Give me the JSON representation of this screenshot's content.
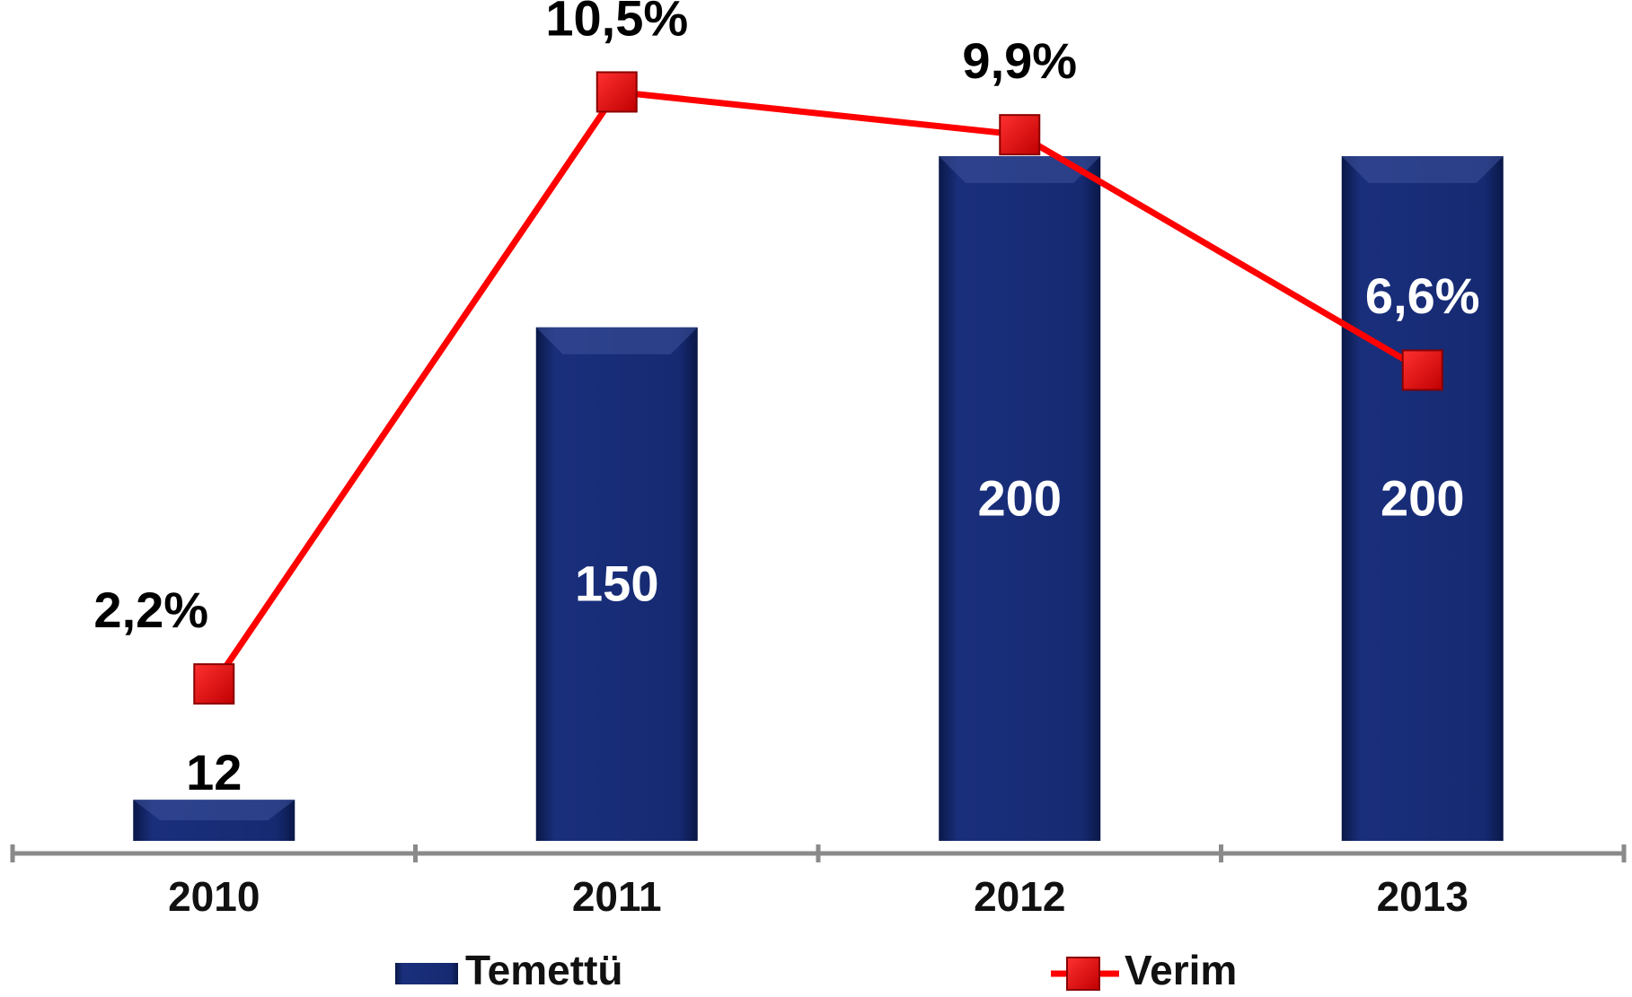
{
  "chart_data": {
    "type": "bar-line",
    "categories": [
      "2010",
      "2011",
      "2012",
      "2013"
    ],
    "series": [
      {
        "name": "Temettü",
        "type": "bar",
        "color": "#13276e",
        "values": [
          12,
          150,
          200,
          200
        ]
      },
      {
        "name": "Verim",
        "type": "line",
        "axis": "y2",
        "color": "#ff0000",
        "values": [
          2.2,
          10.5,
          9.9,
          6.6
        ],
        "value_labels": [
          "2,2%",
          "10,5%",
          "9,9%",
          "6,6%"
        ]
      }
    ],
    "ylim": [
      0,
      200
    ],
    "y2lim": [
      0,
      9.6
    ],
    "legend": "bottom"
  }
}
